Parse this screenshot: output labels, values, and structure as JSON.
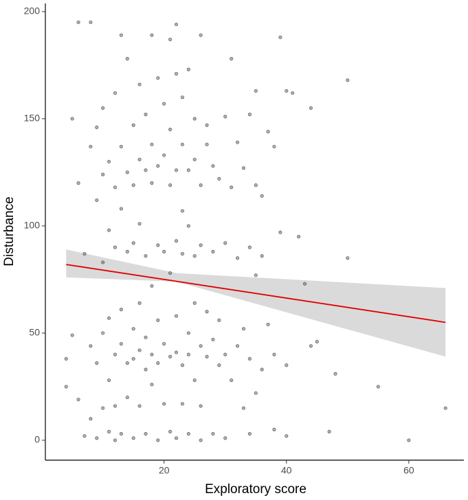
{
  "chart_data": {
    "type": "scatter",
    "xlabel": "Exploratory score",
    "ylabel": "Disturbance",
    "xlim": [
      0.6,
      69
    ],
    "ylim": [
      -9.3,
      203.8
    ],
    "xticks": [
      20,
      40,
      60
    ],
    "yticks": [
      0,
      50,
      100,
      150,
      200
    ],
    "point_color": "#555555",
    "points": {
      "x": [
        4,
        4,
        5,
        5,
        6,
        6,
        6,
        7,
        7,
        8,
        8,
        8,
        8,
        9,
        9,
        9,
        9,
        10,
        10,
        10,
        10,
        10,
        11,
        11,
        11,
        11,
        11,
        12,
        12,
        12,
        12,
        12,
        12,
        13,
        13,
        13,
        13,
        13,
        13,
        14,
        14,
        14,
        14,
        14,
        15,
        15,
        15,
        15,
        15,
        15,
        16,
        16,
        16,
        16,
        16,
        16,
        17,
        17,
        17,
        17,
        17,
        17,
        18,
        18,
        18,
        18,
        18,
        18,
        19,
        19,
        19,
        19,
        19,
        19,
        20,
        20,
        20,
        20,
        20,
        21,
        21,
        21,
        21,
        21,
        21,
        22,
        22,
        22,
        22,
        22,
        22,
        22,
        23,
        23,
        23,
        23,
        23,
        23,
        24,
        24,
        24,
        24,
        24,
        24,
        25,
        25,
        25,
        25,
        25,
        26,
        26,
        26,
        26,
        26,
        26,
        27,
        27,
        27,
        27,
        28,
        28,
        28,
        28,
        29,
        29,
        29,
        30,
        30,
        30,
        30,
        31,
        31,
        31,
        32,
        32,
        32,
        33,
        33,
        33,
        34,
        34,
        34,
        34,
        35,
        35,
        35,
        35,
        36,
        36,
        36,
        37,
        37,
        38,
        38,
        38,
        39,
        39,
        40,
        40,
        40,
        41,
        42,
        43,
        44,
        44,
        45,
        47,
        48,
        50,
        50,
        55,
        60,
        66
      ],
      "y": [
        38,
        25,
        150,
        49,
        195,
        120,
        19,
        87,
        2,
        195,
        137,
        10,
        44,
        146,
        112,
        1,
        36,
        155,
        124,
        83,
        50,
        15,
        130,
        98,
        57,
        28,
        4,
        162,
        118,
        90,
        40,
        16,
        0,
        189,
        137,
        108,
        61,
        45,
        3,
        178,
        125,
        88,
        36,
        20,
        147,
        119,
        92,
        52,
        38,
        1,
        166,
        131,
        101,
        64,
        42,
        16,
        152,
        126,
        86,
        48,
        33,
        3,
        189,
        138,
        120,
        72,
        40,
        26,
        169,
        128,
        91,
        56,
        36,
        0,
        157,
        133,
        88,
        45,
        17,
        187,
        145,
        119,
        78,
        39,
        4,
        194,
        171,
        126,
        93,
        58,
        41,
        1,
        160,
        138,
        107,
        87,
        35,
        17,
        173,
        126,
        100,
        50,
        40,
        3,
        150,
        131,
        86,
        64,
        28,
        189,
        119,
        91,
        44,
        16,
        0,
        147,
        138,
        60,
        39,
        128,
        88,
        47,
        3,
        122,
        56,
        35,
        151,
        92,
        40,
        1,
        178,
        118,
        28,
        139,
        85,
        44,
        127,
        52,
        15,
        152,
        90,
        38,
        3,
        163,
        119,
        77,
        22,
        114,
        86,
        33,
        144,
        54,
        137,
        40,
        5,
        188,
        97,
        163,
        35,
        2,
        162,
        95,
        73,
        155,
        44,
        46,
        4,
        31,
        168,
        85,
        25,
        0,
        15
      ]
    },
    "fit": {
      "x": [
        4,
        66
      ],
      "y": [
        82,
        55
      ],
      "color": "#e00000"
    },
    "band": {
      "x": [
        4,
        22,
        66
      ],
      "lower": [
        76,
        74,
        39
      ],
      "upper": [
        89,
        78,
        71
      ],
      "color": "#d3d3d3"
    }
  }
}
